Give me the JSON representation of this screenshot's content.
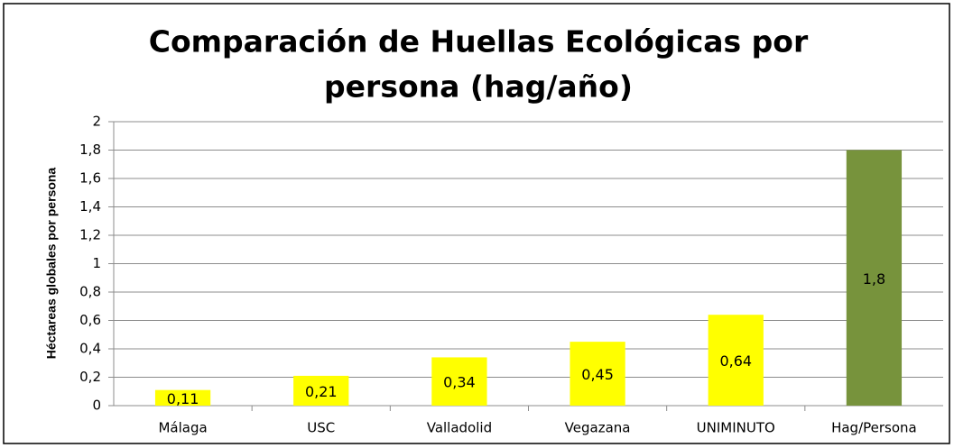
{
  "chart_data": {
    "type": "bar",
    "title_lines": [
      "Comparación de Huellas Ecológicas por",
      "persona (hag/año)"
    ],
    "y_label": "Héctareas globales por persona",
    "categories": [
      "Málaga",
      "USC",
      "Valladolid",
      "Vegazana",
      "UNIMINUTO",
      "Hag/Persona"
    ],
    "values": [
      0.11,
      0.21,
      0.34,
      0.45,
      0.64,
      1.8
    ],
    "value_labels": [
      "0,11",
      "0,21",
      "0,34",
      "0,45",
      "0,64",
      "1,8"
    ],
    "colors": [
      "#ffff00",
      "#ffff00",
      "#ffff00",
      "#ffff00",
      "#ffff00",
      "#77933c"
    ],
    "ylim": [
      0,
      2
    ],
    "yticks": [
      0,
      {
        "value": 0.2,
        "label": "0,2"
      },
      {
        "value": 0.4,
        "label": "0,4"
      },
      {
        "value": 0.6,
        "label": "0,6"
      },
      {
        "value": 0.8,
        "label": "0,8"
      },
      1,
      {
        "value": 1.2,
        "label": "1,2"
      },
      {
        "value": 1.4,
        "label": "1,4"
      },
      {
        "value": 1.6,
        "label": "1,6"
      },
      {
        "value": 1.8,
        "label": "1,8"
      },
      2
    ],
    "grid": true
  }
}
